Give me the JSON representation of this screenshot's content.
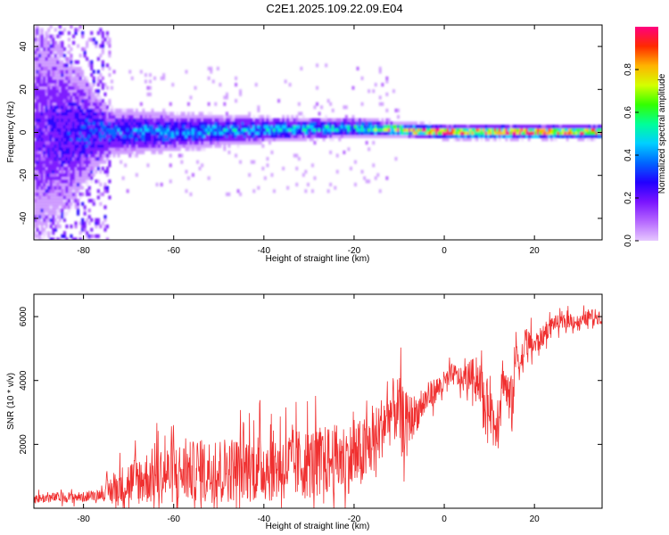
{
  "title": "C2E1.2025.109.22.09.E04",
  "colors": {
    "snr_line": "#f03030",
    "axes": "#000000",
    "colormap": [
      "#e6c8ff",
      "#b566ff",
      "#7a14ff",
      "#2200ff",
      "#0066ff",
      "#00cfff",
      "#00ff99",
      "#33ff00",
      "#d4ff00",
      "#ffb300",
      "#ff2a00",
      "#ff007f"
    ]
  },
  "chart_data": [
    {
      "type": "heatmap",
      "title": "C2E1.2025.109.22.09.E04",
      "xlabel": "Height of straight line (km)",
      "ylabel": "Frequency (Hz)",
      "xlim": [
        -91,
        35
      ],
      "ylim": [
        -50,
        50
      ],
      "xticks": [
        -80,
        -60,
        -40,
        -20,
        0,
        20
      ],
      "yticks": [
        -40,
        -20,
        0,
        20,
        40
      ],
      "colorbar": {
        "label": "Normalized spectral amplitude",
        "range": [
          0,
          1
        ],
        "ticks": [
          "0.0",
          "0.2",
          "0.4",
          "0.6",
          "0.8"
        ]
      },
      "grid": false,
      "ridge": [
        {
          "x": -90,
          "center": 0,
          "spread": 40,
          "peak": 0.2
        },
        {
          "x": -75,
          "center": 0,
          "spread": 8,
          "peak": 0.35
        },
        {
          "x": -60,
          "center": 0,
          "spread": 6,
          "peak": 0.4
        },
        {
          "x": -40,
          "center": 1,
          "spread": 4,
          "peak": 0.45
        },
        {
          "x": -20,
          "center": 2,
          "spread": 3,
          "peak": 0.5
        },
        {
          "x": -10,
          "center": 1,
          "spread": 2,
          "peak": 0.9
        },
        {
          "x": 0,
          "center": 0,
          "spread": 2,
          "peak": 1.0
        },
        {
          "x": 35,
          "center": 0,
          "spread": 2,
          "peak": 1.0
        }
      ]
    },
    {
      "type": "line",
      "xlabel": "Height of straight line (km)",
      "ylabel": "SNR (10 * v/v)",
      "xlim": [
        -91,
        35
      ],
      "ylim": [
        0,
        6700
      ],
      "xticks": [
        -80,
        -60,
        -40,
        -20,
        0,
        20
      ],
      "yticks": [
        2000,
        4000,
        6000
      ],
      "grid": false,
      "series": [
        {
          "x": [
            -91,
            -85,
            -80,
            -76,
            -74,
            -70,
            -65,
            -60,
            -55,
            -50,
            -45,
            -40,
            -35,
            -30,
            -25,
            -20,
            -18,
            -15,
            -13,
            -11,
            -10,
            -9,
            -8,
            -6,
            -4,
            -2,
            0,
            2,
            4,
            6,
            8,
            9,
            10,
            11,
            12,
            13,
            14,
            15,
            16,
            17,
            18,
            20,
            22,
            24,
            26,
            28,
            30,
            32,
            35
          ],
          "y": [
            300,
            350,
            350,
            450,
            550,
            800,
            1000,
            1100,
            1150,
            1200,
            1250,
            1300,
            1350,
            1400,
            1500,
            1600,
            1700,
            2200,
            2800,
            3100,
            3000,
            2700,
            2800,
            3000,
            3400,
            3700,
            3900,
            4200,
            4000,
            4200,
            4000,
            3000,
            3500,
            2600,
            3000,
            4200,
            3600,
            3200,
            5000,
            4500,
            5200,
            5100,
            5400,
            5800,
            5800,
            5900,
            5800,
            6000,
            6000
          ],
          "noise": [
            200,
            200,
            200,
            200,
            600,
            900,
            1100,
            1200,
            1200,
            1300,
            1300,
            1400,
            1400,
            1400,
            1400,
            1400,
            1400,
            1300,
            1200,
            1300,
            1400,
            1300,
            1000,
            700,
            600,
            500,
            500,
            450,
            450,
            600,
            900,
            1000,
            1000,
            1200,
            1000,
            800,
            900,
            1200,
            1000,
            800,
            600,
            500,
            400,
            300,
            300,
            300,
            300,
            300,
            300
          ]
        }
      ]
    }
  ]
}
